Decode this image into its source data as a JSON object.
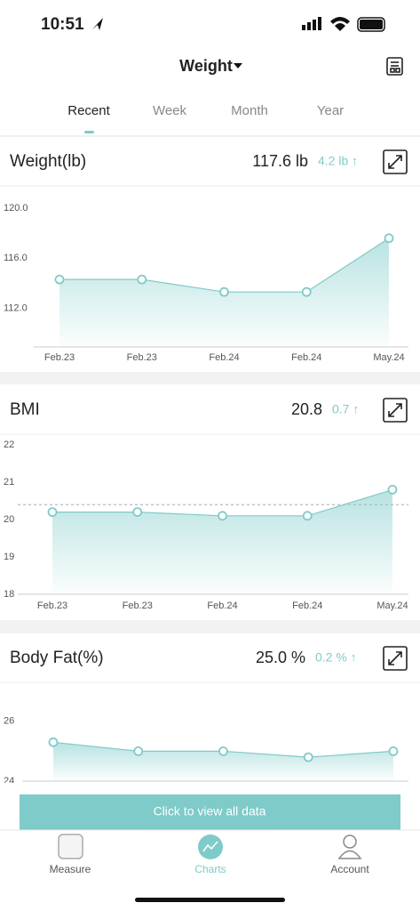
{
  "status_bar": {
    "time": "10:51"
  },
  "header": {
    "title": "Weight"
  },
  "tabs": [
    "Recent",
    "Week",
    "Month",
    "Year"
  ],
  "chart_data": [
    {
      "type": "line",
      "title": "Weight(lb)",
      "current": "117.6 lb",
      "change": "4.2 lb ↑",
      "categories": [
        "Feb.23",
        "Feb.23",
        "Feb.24",
        "Feb.24",
        "May.24"
      ],
      "values": [
        114.3,
        114.3,
        113.3,
        113.3,
        117.6
      ],
      "color": "#7ecbc9",
      "ylim": [
        108.9,
        121
      ],
      "yticks": [
        {
          "value": 120,
          "label": "120.0"
        },
        {
          "value": 116,
          "label": "116.0"
        },
        {
          "value": 112,
          "label": "112.0"
        }
      ],
      "grid": false
    },
    {
      "type": "line",
      "title": "BMI",
      "current": "20.8",
      "change": "0.7 ↑",
      "categories": [
        "Feb.23",
        "Feb.23",
        "Feb.24",
        "Feb.24",
        "May.24"
      ],
      "values": [
        20.2,
        20.2,
        20.1,
        20.1,
        20.8
      ],
      "color": "#7ecbc9",
      "ylim": [
        18,
        22
      ],
      "yticks": [
        22,
        21,
        20,
        19,
        18
      ],
      "reference_line": 20.4,
      "grid": false
    },
    {
      "type": "line",
      "title": "Body Fat(%)",
      "current": "25.0 %",
      "change": "0.2 % ↑",
      "values": [
        25.3,
        25.0,
        25.0,
        24.8,
        25.0
      ],
      "color": "#7ecbc9",
      "ylim": [
        24,
        26.5
      ],
      "yticks": [
        26,
        24
      ],
      "grid": false
    }
  ],
  "button": "Click to view all data",
  "tab_bar": [
    "Measure",
    "Charts",
    "Account"
  ]
}
